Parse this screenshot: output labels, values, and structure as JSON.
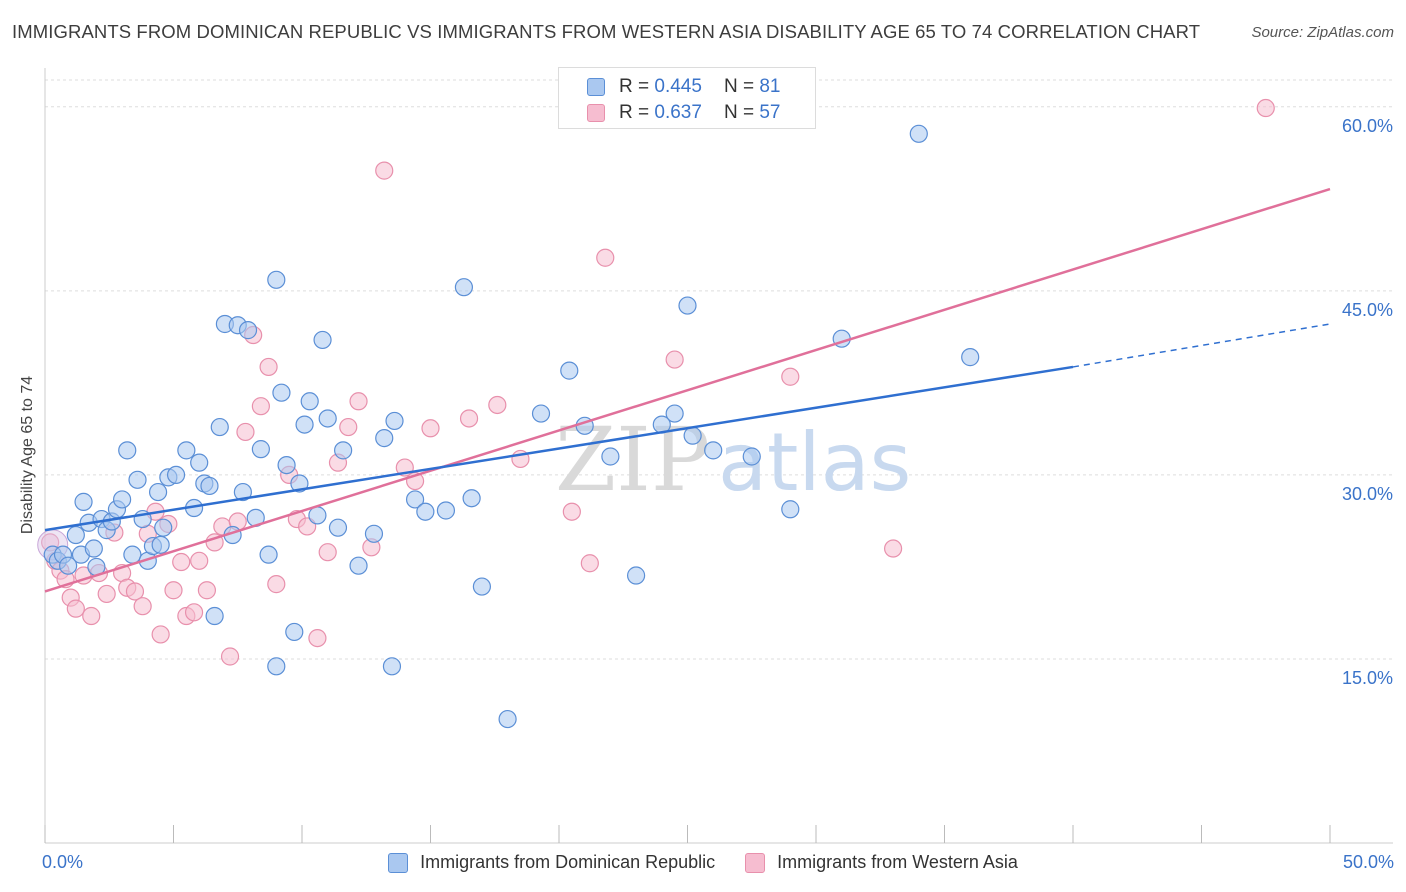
{
  "title": "IMMIGRANTS FROM DOMINICAN REPUBLIC VS IMMIGRANTS FROM WESTERN ASIA DISABILITY AGE 65 TO 74 CORRELATION CHART",
  "source": "Source: ZipAtlas.com",
  "watermark": {
    "zip": "ZIP",
    "atlas": "atlas"
  },
  "legend_top": [
    {
      "r_label": "R =",
      "r_value": "0.445",
      "n_label": "N =",
      "n_value": "81"
    },
    {
      "r_label": "R =",
      "r_value": "0.637",
      "n_label": "N =",
      "n_value": "57"
    }
  ],
  "chart_data": {
    "type": "scatter",
    "xlabel": "",
    "ylabel": "Disability Age 65 to 74",
    "xlim": [
      0,
      50
    ],
    "ylim": [
      0,
      63
    ],
    "x_tick_labels": [
      "0.0%",
      "50.0%"
    ],
    "y_ticks": [
      15,
      30,
      45,
      60
    ],
    "y_tick_labels": [
      "15.0%",
      "30.0%",
      "45.0%",
      "60.0%"
    ],
    "grid": true,
    "legend_position": "bottom",
    "colors": {
      "blue": "#5b8fd6",
      "blue_fill": "#aac8f0",
      "blue_line": "#2f6fd0",
      "pink": "#e890ac",
      "pink_fill": "#f6bdd0",
      "pink_line": "#e0709a",
      "axis_text": "#3a73c9"
    },
    "series": [
      {
        "name": "Immigrants from Dominican Republic",
        "color": "#5b8fd6",
        "trend": {
          "x0": 0,
          "y0": 25.5,
          "x1": 40,
          "y1": 38.8,
          "dash_to_x": 50,
          "dash_to_y": 42.3
        },
        "points": [
          [
            0.3,
            23.5
          ],
          [
            0.5,
            23.0
          ],
          [
            0.7,
            23.5
          ],
          [
            0.9,
            22.6
          ],
          [
            1.2,
            25.1
          ],
          [
            1.4,
            23.5
          ],
          [
            1.5,
            27.8
          ],
          [
            1.7,
            26.1
          ],
          [
            1.9,
            24.0
          ],
          [
            2.0,
            22.5
          ],
          [
            2.2,
            26.4
          ],
          [
            2.4,
            25.5
          ],
          [
            2.6,
            26.2
          ],
          [
            2.8,
            27.2
          ],
          [
            3.0,
            28.0
          ],
          [
            3.2,
            32.0
          ],
          [
            3.4,
            23.5
          ],
          [
            3.6,
            29.6
          ],
          [
            3.8,
            26.4
          ],
          [
            4.0,
            23.0
          ],
          [
            4.2,
            24.2
          ],
          [
            4.4,
            28.6
          ],
          [
            4.5,
            24.3
          ],
          [
            4.6,
            25.7
          ],
          [
            4.8,
            29.8
          ],
          [
            5.1,
            30.0
          ],
          [
            5.5,
            32.0
          ],
          [
            5.8,
            27.3
          ],
          [
            6.0,
            31.0
          ],
          [
            6.2,
            29.3
          ],
          [
            6.4,
            29.1
          ],
          [
            6.6,
            18.5
          ],
          [
            6.8,
            33.9
          ],
          [
            7.0,
            42.3
          ],
          [
            7.3,
            25.1
          ],
          [
            7.5,
            42.2
          ],
          [
            7.7,
            28.6
          ],
          [
            7.9,
            41.8
          ],
          [
            8.2,
            26.5
          ],
          [
            8.4,
            32.1
          ],
          [
            8.7,
            23.5
          ],
          [
            9.0,
            45.9
          ],
          [
            9.2,
            36.7
          ],
          [
            9.4,
            30.8
          ],
          [
            9.7,
            17.2
          ],
          [
            9.9,
            29.3
          ],
          [
            10.1,
            34.1
          ],
          [
            10.3,
            36.0
          ],
          [
            10.6,
            26.7
          ],
          [
            10.8,
            41.0
          ],
          [
            11.0,
            34.6
          ],
          [
            11.4,
            25.7
          ],
          [
            11.6,
            32.0
          ],
          [
            12.2,
            22.6
          ],
          [
            12.8,
            25.2
          ],
          [
            13.2,
            33.0
          ],
          [
            13.6,
            34.4
          ],
          [
            14.4,
            28.0
          ],
          [
            14.8,
            27.0
          ],
          [
            15.6,
            27.1
          ],
          [
            16.3,
            45.3
          ],
          [
            16.6,
            28.1
          ],
          [
            17.0,
            20.9
          ],
          [
            18.0,
            10.1
          ],
          [
            19.3,
            35.0
          ],
          [
            20.4,
            38.5
          ],
          [
            21.0,
            34.0
          ],
          [
            22.0,
            31.5
          ],
          [
            23.0,
            21.8
          ],
          [
            24.0,
            34.1
          ],
          [
            24.5,
            35.0
          ],
          [
            25.0,
            43.8
          ],
          [
            25.2,
            33.2
          ],
          [
            26.0,
            32.0
          ],
          [
            27.5,
            31.5
          ],
          [
            29.0,
            27.2
          ],
          [
            31.0,
            41.1
          ],
          [
            34.0,
            57.8
          ],
          [
            36.0,
            39.6
          ],
          [
            13.5,
            14.4
          ],
          [
            9.0,
            14.4
          ]
        ]
      },
      {
        "name": "Immigrants from Western Asia",
        "color": "#e890ac",
        "trend": {
          "x0": 0,
          "y0": 20.5,
          "x1": 50,
          "y1": 53.3
        },
        "points": [
          [
            0.2,
            24.5
          ],
          [
            0.4,
            23.0
          ],
          [
            0.6,
            22.2
          ],
          [
            0.8,
            21.5
          ],
          [
            1.0,
            20.0
          ],
          [
            1.2,
            19.1
          ],
          [
            1.5,
            21.8
          ],
          [
            1.8,
            18.5
          ],
          [
            2.1,
            22.0
          ],
          [
            2.4,
            20.3
          ],
          [
            2.7,
            25.3
          ],
          [
            3.0,
            22.0
          ],
          [
            3.2,
            20.8
          ],
          [
            3.5,
            20.5
          ],
          [
            3.8,
            19.3
          ],
          [
            4.0,
            25.2
          ],
          [
            4.3,
            27.0
          ],
          [
            4.5,
            17.0
          ],
          [
            4.8,
            26.0
          ],
          [
            5.0,
            20.6
          ],
          [
            5.3,
            22.9
          ],
          [
            5.5,
            18.5
          ],
          [
            5.8,
            18.8
          ],
          [
            6.0,
            23.0
          ],
          [
            6.3,
            20.6
          ],
          [
            6.6,
            24.5
          ],
          [
            6.9,
            25.8
          ],
          [
            7.2,
            15.2
          ],
          [
            7.5,
            26.2
          ],
          [
            7.8,
            33.5
          ],
          [
            8.1,
            41.4
          ],
          [
            8.4,
            35.6
          ],
          [
            8.7,
            38.8
          ],
          [
            9.0,
            21.1
          ],
          [
            9.5,
            30.0
          ],
          [
            9.8,
            26.4
          ],
          [
            10.2,
            25.8
          ],
          [
            10.6,
            16.7
          ],
          [
            11.0,
            23.7
          ],
          [
            11.4,
            31.0
          ],
          [
            11.8,
            33.9
          ],
          [
            12.2,
            36.0
          ],
          [
            12.7,
            24.1
          ],
          [
            13.2,
            54.8
          ],
          [
            14.0,
            30.6
          ],
          [
            14.4,
            29.5
          ],
          [
            15.0,
            33.8
          ],
          [
            16.5,
            34.6
          ],
          [
            17.6,
            35.7
          ],
          [
            18.5,
            31.3
          ],
          [
            20.5,
            27.0
          ],
          [
            21.2,
            22.8
          ],
          [
            21.8,
            47.7
          ],
          [
            24.5,
            39.4
          ],
          [
            29.0,
            38.0
          ],
          [
            33.0,
            24.0
          ],
          [
            47.5,
            59.9
          ]
        ]
      }
    ]
  }
}
